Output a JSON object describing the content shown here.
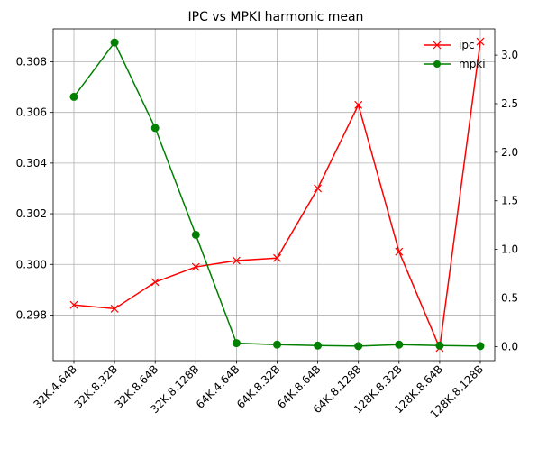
{
  "chart_data": {
    "type": "line",
    "title": "IPC vs MPKI harmonic mean",
    "xlabel": "",
    "categories": [
      "32K.4.64B",
      "32K.8.32B",
      "32K.8.64B",
      "32K.8.128B",
      "64K.4.64B",
      "64K.8.32B",
      "64K.8.64B",
      "64K.8.128B",
      "128K.8.32B",
      "128K.8.64B",
      "128K.8.128B"
    ],
    "series": [
      {
        "name": "ipc",
        "axis": "left",
        "color": "#ff0000",
        "marker": "x",
        "values": [
          0.2984,
          0.29825,
          0.2993,
          0.2999,
          0.30015,
          0.30025,
          0.303,
          0.3063,
          0.3005,
          0.2967,
          0.3088
        ]
      },
      {
        "name": "mpki",
        "axis": "right",
        "color": "#008000",
        "marker": "circle",
        "values": [
          2.57,
          3.13,
          2.25,
          1.15,
          0.035,
          0.02,
          0.01,
          0.005,
          0.02,
          0.01,
          0.005
        ]
      }
    ],
    "y_left": {
      "label": "",
      "ylim": [
        0.2962,
        0.3093
      ],
      "ticks": [
        0.298,
        0.3,
        0.302,
        0.304,
        0.306,
        0.308
      ],
      "tick_labels": [
        "0.298",
        "0.300",
        "0.302",
        "0.304",
        "0.306",
        "0.308"
      ]
    },
    "y_right": {
      "label": "",
      "ylim": [
        -0.145,
        3.27
      ],
      "ticks": [
        0.0,
        0.5,
        1.0,
        1.5,
        2.0,
        2.5,
        3.0
      ],
      "tick_labels": [
        "0.0",
        "0.5",
        "1.0",
        "1.5",
        "2.0",
        "2.5",
        "3.0"
      ]
    },
    "grid": true,
    "legend_position": "top-right"
  }
}
